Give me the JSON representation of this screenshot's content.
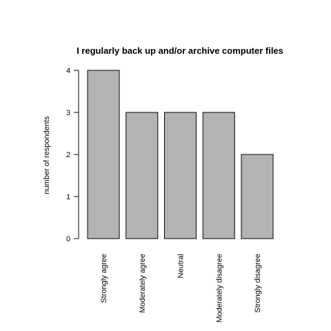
{
  "chart_data": {
    "type": "bar",
    "title": "I regularly back up and/or archive computer files",
    "xlabel": "",
    "ylabel": "number of respondents",
    "categories": [
      "Strongly agree",
      "Moderately agree",
      "Neutral",
      "Moderately disagree",
      "Strongly disagree"
    ],
    "values": [
      4,
      3,
      3,
      3,
      2
    ],
    "ylim": [
      0,
      4
    ],
    "yticks": [
      0,
      1,
      2,
      3,
      4
    ],
    "bar_color": "#b3b3b3",
    "grid": false,
    "legend": "none"
  }
}
